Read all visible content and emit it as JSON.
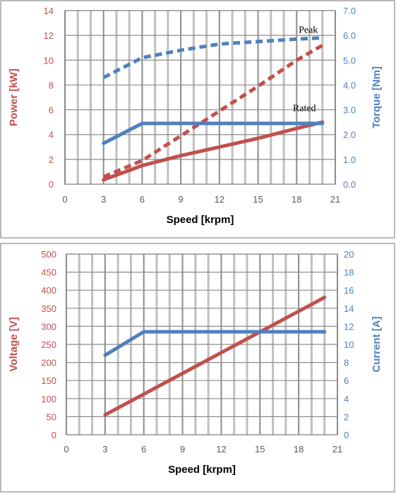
{
  "colors": {
    "red": "#c0504d",
    "blue": "#4f81bd",
    "tick_red": "#c0504d",
    "tick_blue": "#4f81bd",
    "grid": "#bfbfbf",
    "grid_strong": "#8c8c8c",
    "frame": "#8c8c8c"
  },
  "chart_data": [
    {
      "type": "line",
      "xlabel": "Speed [krpm]",
      "ylabel_left": "Power [kW]",
      "ylabel_right": "Torque [Nm]",
      "xlim": [
        0,
        21
      ],
      "xticks": [
        0,
        3,
        6,
        9,
        12,
        15,
        18,
        21
      ],
      "x_minor_step": 1,
      "ylim_left": [
        0,
        14
      ],
      "yticks_left": [
        "0",
        "2",
        "4",
        "6",
        "8",
        "10",
        "12",
        "14"
      ],
      "ylim_right": [
        0,
        7
      ],
      "yticks_right": [
        "0.0",
        "1.0",
        "2.0",
        "3.0",
        "4.0",
        "5.0",
        "6.0",
        "7.0"
      ],
      "grid": true,
      "annotations": [
        {
          "text": "Peak",
          "x": 18.9,
          "y_right": 6.1
        },
        {
          "text": "Rated",
          "x": 18.6,
          "y_right": 2.95
        }
      ],
      "series": [
        {
          "axis": "left",
          "color": "red",
          "style": "dashed",
          "x": [
            3,
            6,
            9,
            12,
            15,
            18,
            20
          ],
          "y": [
            0.6,
            1.9,
            3.9,
            5.9,
            7.9,
            10.0,
            11.2
          ]
        },
        {
          "axis": "left",
          "color": "red",
          "style": "solid",
          "x": [
            3,
            6,
            9,
            12,
            15,
            18,
            20
          ],
          "y": [
            0.35,
            1.5,
            2.3,
            3.0,
            3.7,
            4.5,
            5.0
          ]
        },
        {
          "axis": "right",
          "color": "blue",
          "style": "dashed",
          "x": [
            3,
            6,
            9,
            12,
            15,
            18,
            20
          ],
          "y": [
            4.3,
            5.1,
            5.4,
            5.65,
            5.75,
            5.85,
            5.9
          ]
        },
        {
          "axis": "right",
          "color": "blue",
          "style": "solid",
          "x": [
            3,
            6,
            20
          ],
          "y": [
            1.65,
            2.45,
            2.45
          ]
        }
      ]
    },
    {
      "type": "line",
      "xlabel": "Speed [krpm]",
      "ylabel_left": "Voltage [V]",
      "ylabel_right": "Current [A]",
      "xlim": [
        0,
        21
      ],
      "xticks": [
        0,
        3,
        6,
        9,
        12,
        15,
        18,
        21
      ],
      "x_minor_step": 1,
      "ylim_left": [
        0,
        500
      ],
      "yticks_left": [
        "0",
        "50",
        "100",
        "150",
        "200",
        "250",
        "300",
        "350",
        "400",
        "450",
        "500"
      ],
      "ylim_right": [
        0,
        20
      ],
      "yticks_right": [
        "0",
        "2",
        "4",
        "6",
        "8",
        "10",
        "12",
        "14",
        "16",
        "18",
        "20"
      ],
      "grid": true,
      "annotations": [],
      "series": [
        {
          "axis": "left",
          "color": "red",
          "style": "solid",
          "x": [
            3,
            20
          ],
          "y": [
            55,
            380
          ]
        },
        {
          "axis": "right",
          "color": "blue",
          "style": "solid",
          "x": [
            3,
            6,
            20
          ],
          "y": [
            8.8,
            11.4,
            11.4
          ]
        }
      ]
    }
  ]
}
